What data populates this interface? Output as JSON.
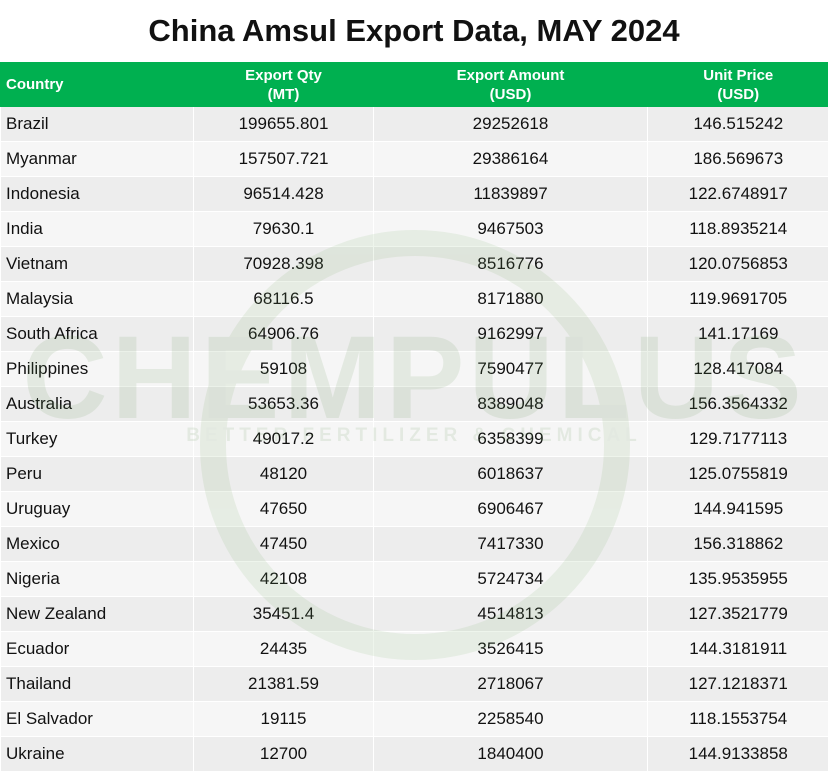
{
  "title": "China Amsul Export Data, MAY 2024",
  "watermark": {
    "brand": "CHEMPULUS",
    "tagline": "BETTER FERTILIZER & CHEMICAL"
  },
  "colors": {
    "header_bg": "#00b050",
    "header_text": "#ffffff",
    "row_odd": "#ededed",
    "row_even": "#f6f6f6"
  },
  "table": {
    "headers": {
      "country": "Country",
      "qty_line1": "Export Qty",
      "qty_line2": "(MT)",
      "amount_line1": "Export Amount",
      "amount_line2": "(USD)",
      "price_line1": "Unit Price",
      "price_line2": "(USD)"
    },
    "rows": [
      {
        "country": "Brazil",
        "qty": "199655.801",
        "amount": "29252618",
        "price": "146.515242"
      },
      {
        "country": "Myanmar",
        "qty": "157507.721",
        "amount": "29386164",
        "price": "186.569673"
      },
      {
        "country": "Indonesia",
        "qty": "96514.428",
        "amount": "11839897",
        "price": "122.6748917"
      },
      {
        "country": "India",
        "qty": "79630.1",
        "amount": "9467503",
        "price": "118.8935214"
      },
      {
        "country": "Vietnam",
        "qty": "70928.398",
        "amount": "8516776",
        "price": "120.0756853"
      },
      {
        "country": "Malaysia",
        "qty": "68116.5",
        "amount": "8171880",
        "price": "119.9691705"
      },
      {
        "country": "South Africa",
        "qty": "64906.76",
        "amount": "9162997",
        "price": "141.17169"
      },
      {
        "country": "Philippines",
        "qty": "59108",
        "amount": "7590477",
        "price": "128.417084"
      },
      {
        "country": "Australia",
        "qty": "53653.36",
        "amount": "8389048",
        "price": "156.3564332"
      },
      {
        "country": "Turkey",
        "qty": "49017.2",
        "amount": "6358399",
        "price": "129.7177113"
      },
      {
        "country": "Peru",
        "qty": "48120",
        "amount": "6018637",
        "price": "125.0755819"
      },
      {
        "country": "Uruguay",
        "qty": "47650",
        "amount": "6906467",
        "price": "144.941595"
      },
      {
        "country": "Mexico",
        "qty": "47450",
        "amount": "7417330",
        "price": "156.318862"
      },
      {
        "country": "Nigeria",
        "qty": "42108",
        "amount": "5724734",
        "price": "135.9535955"
      },
      {
        "country": "New Zealand",
        "qty": "35451.4",
        "amount": "4514813",
        "price": "127.3521779"
      },
      {
        "country": "Ecuador",
        "qty": "24435",
        "amount": "3526415",
        "price": "144.3181911"
      },
      {
        "country": "Thailand",
        "qty": "21381.59",
        "amount": "2718067",
        "price": "127.1218371"
      },
      {
        "country": "El Salvador",
        "qty": "19115",
        "amount": "2258540",
        "price": "118.1553754"
      },
      {
        "country": "Ukraine",
        "qty": "12700",
        "amount": "1840400",
        "price": "144.9133858"
      }
    ]
  }
}
